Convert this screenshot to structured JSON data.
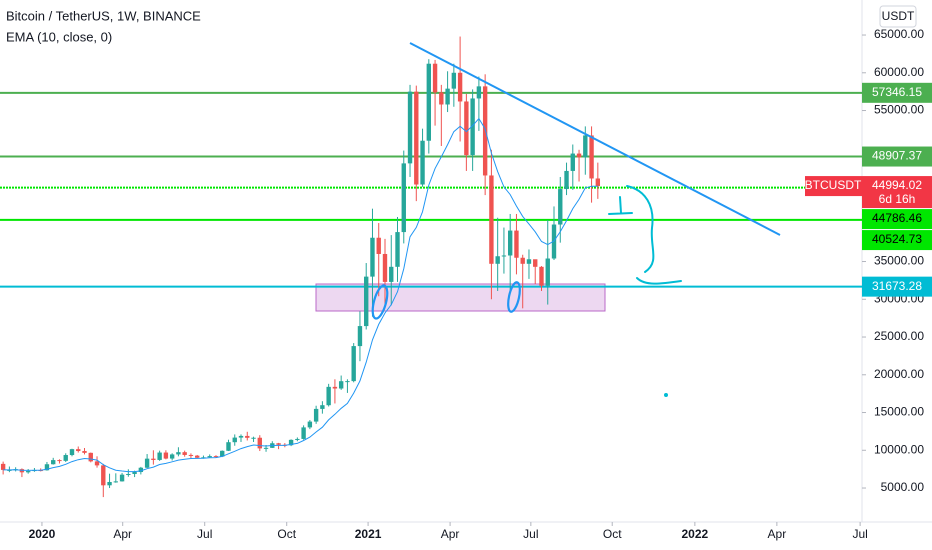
{
  "chart_data": {
    "type": "candlestick",
    "title": "Bitcoin / TetherUS, 1W, BINANCE",
    "currency": "USDT",
    "up_color": "#26a69a",
    "down_color": "#ef5350",
    "open": [
      8200,
      7400,
      7400,
      7500,
      7080,
      7250,
      7380,
      7350,
      8150,
      8700,
      8600,
      9370,
      10150,
      9900,
      9660,
      8530,
      8000,
      5360,
      5800,
      5880,
      6770,
      6860,
      7120,
      7690,
      8890,
      8720,
      9700,
      8900,
      9450,
      9750,
      9380,
      9290,
      9010,
      9070,
      9230,
      9160,
      9930,
      11070,
      11680,
      11900,
      11650,
      11660,
      10250,
      10320,
      10930,
      10730,
      10670,
      11380,
      11500,
      13030,
      13800,
      15480,
      15970,
      18400,
      18180,
      19150,
      19160,
      23800,
      26450,
      33000,
      38150,
      36000,
      32300,
      34300,
      38900,
      48000,
      57500,
      45200,
      51000,
      61200,
      57400,
      55800,
      57900,
      60000,
      56200,
      49100,
      56600,
      58200,
      46400,
      34700,
      35700,
      35800,
      39100,
      35500,
      34700,
      35300,
      34300,
      31800,
      35400,
      39900,
      44600,
      47000,
      49300,
      48800,
      51700,
      46000
    ],
    "high": [
      8500,
      7850,
      7750,
      7600,
      7520,
      7650,
      7600,
      8450,
      9000,
      8800,
      9600,
      10200,
      10500,
      10300,
      9700,
      9200,
      8200,
      6900,
      6950,
      7000,
      7480,
      7300,
      7800,
      9500,
      10000,
      9950,
      10000,
      9600,
      10400,
      9950,
      9590,
      9380,
      9300,
      9450,
      9350,
      9980,
      11400,
      12100,
      12100,
      12450,
      11800,
      12000,
      10700,
      11200,
      10980,
      10950,
      11450,
      11700,
      13300,
      14000,
      15900,
      16500,
      18800,
      19400,
      19900,
      19400,
      24200,
      28400,
      34800,
      42000,
      40100,
      38000,
      38500,
      40900,
      49700,
      58400,
      58300,
      52600,
      61800,
      61700,
      58400,
      60200,
      61200,
      64800,
      57200,
      57800,
      59500,
      59800,
      49800,
      40800,
      39500,
      41300,
      41300,
      35900,
      36600,
      35100,
      34400,
      40500,
      42300,
      46200,
      48100,
      50500,
      49800,
      52900,
      52900,
      48100
    ],
    "low": [
      6800,
      7100,
      7200,
      6450,
      6900,
      7150,
      7200,
      7300,
      8100,
      8250,
      8450,
      9200,
      9700,
      9450,
      8400,
      7700,
      3800,
      5000,
      5700,
      5850,
      6500,
      6450,
      6800,
      7650,
      8100,
      8600,
      8800,
      8650,
      9200,
      9150,
      8930,
      8900,
      8890,
      9050,
      9000,
      9100,
      9900,
      10600,
      11100,
      11300,
      11100,
      9900,
      9800,
      10300,
      10150,
      10400,
      10550,
      11200,
      11400,
      12800,
      13500,
      14850,
      15800,
      16200,
      18000,
      17600,
      19000,
      21800,
      26000,
      27700,
      30400,
      28800,
      29200,
      32300,
      37400,
      46200,
      43000,
      44900,
      49300,
      53000,
      50300,
      54800,
      55500,
      50900,
      47000,
      47000,
      52300,
      43800,
      30000,
      31100,
      33400,
      31000,
      33300,
      28800,
      32700,
      32000,
      31100,
      29300,
      35200,
      37500,
      43800,
      44500,
      45600,
      46500,
      42800,
      43300
    ],
    "close": [
      7400,
      7400,
      7500,
      7080,
      7250,
      7380,
      7350,
      8150,
      8700,
      8600,
      9370,
      10150,
      9900,
      9660,
      8530,
      8000,
      5360,
      5800,
      5880,
      6770,
      6860,
      7120,
      7690,
      8890,
      8720,
      9700,
      8900,
      9450,
      9750,
      9380,
      9290,
      9010,
      9070,
      9230,
      9160,
      9930,
      11070,
      11680,
      11900,
      11650,
      11660,
      10250,
      10320,
      10930,
      10730,
      10670,
      11380,
      11500,
      13030,
      13800,
      15480,
      15970,
      18400,
      18180,
      19150,
      19160,
      23800,
      26450,
      33000,
      38150,
      36000,
      32300,
      34300,
      38900,
      48000,
      57500,
      45200,
      51000,
      61200,
      57400,
      55800,
      57900,
      60000,
      56200,
      49100,
      56600,
      58200,
      46400,
      34700,
      35700,
      35800,
      39100,
      35500,
      34700,
      35300,
      34300,
      31800,
      35400,
      39900,
      44600,
      47000,
      49300,
      48800,
      51700,
      46000,
      44994
    ],
    "indicator": {
      "name": "EMA (10, close, 0)",
      "color": "#2196f3",
      "values": [
        7400,
        7400,
        7418,
        7357,
        7338,
        7346,
        7347,
        7491,
        7709,
        7869,
        8139,
        8501,
        8753,
        8916,
        8846,
        8694,
        8094,
        7681,
        7357,
        7251,
        7181,
        7170,
        7263,
        7556,
        7766,
        8114,
        8256,
        8471,
        8701,
        8823,
        8907,
        8926,
        8952,
        9002,
        9031,
        9191,
        9530,
        9860,
        10227,
        10483,
        10695,
        10614,
        10561,
        10627,
        10646,
        10650,
        10781,
        10911,
        11292,
        11744,
        12417,
        13057,
        14019,
        14768,
        15557,
        16206,
        17573,
        19171,
        21660,
        24628,
        26675,
        28188,
        29268,
        31002,
        34062,
        38281,
        39527,
        41592,
        45121,
        47331,
        48855,
        50483,
        52196,
        52917,
        52210,
        53000,
        53936,
        52579,
        49361,
        46902,
        44904,
        43859,
        42354,
        40976,
        39954,
        38936,
        37651,
        37245,
        37724,
        38961,
        40408,
        42009,
        43231,
        44755,
        44979,
        44982
      ]
    },
    "levels": [
      {
        "value": 57346.15,
        "color": "#4caf50",
        "style": "solid"
      },
      {
        "value": 48907.37,
        "color": "#4caf50",
        "style": "solid"
      },
      {
        "value": 44786.46,
        "color": "#00e600",
        "style": "dotted"
      },
      {
        "value": 40524.73,
        "color": "#00e600",
        "style": "solid"
      },
      {
        "value": 31673.28,
        "color": "#00bcd4",
        "style": "solid"
      }
    ],
    "price_label": {
      "symbol": "BTCUSDT",
      "value": 44994.02,
      "countdown": "6d 16h",
      "color": "#f23645"
    },
    "xlim": [
      -0.5,
      137.2
    ],
    "xticks": [
      {
        "value": 6.2,
        "label": "2020"
      },
      {
        "value": 19.1,
        "label": "Apr"
      },
      {
        "value": 32.2,
        "label": "Jul"
      },
      {
        "value": 45.3,
        "label": "Oct"
      },
      {
        "value": 58.3,
        "label": "2021"
      },
      {
        "value": 71.4,
        "label": "Apr"
      },
      {
        "value": 84.3,
        "label": "Jul"
      },
      {
        "value": 97.3,
        "label": "Oct"
      },
      {
        "value": 110.5,
        "label": "2022"
      },
      {
        "value": 123.6,
        "label": "Apr"
      },
      {
        "value": 136.9,
        "label": "Jul"
      }
    ],
    "ylim": [
      500,
      69640
    ],
    "yticks": [
      {
        "value": 65000,
        "label": "65000.00"
      },
      {
        "value": 60000,
        "label": "60000.00"
      },
      {
        "value": 55000,
        "label": "55000.00"
      },
      {
        "value": 35000,
        "label": "35000.00"
      },
      {
        "value": 30000,
        "label": "30000.00"
      },
      {
        "value": 25000,
        "label": "25000.00"
      },
      {
        "value": 20000,
        "label": "20000.00"
      },
      {
        "value": 15000,
        "label": "15000.00"
      },
      {
        "value": 10000,
        "label": "10000.00"
      },
      {
        "value": 5000,
        "label": "5000.00"
      }
    ]
  }
}
